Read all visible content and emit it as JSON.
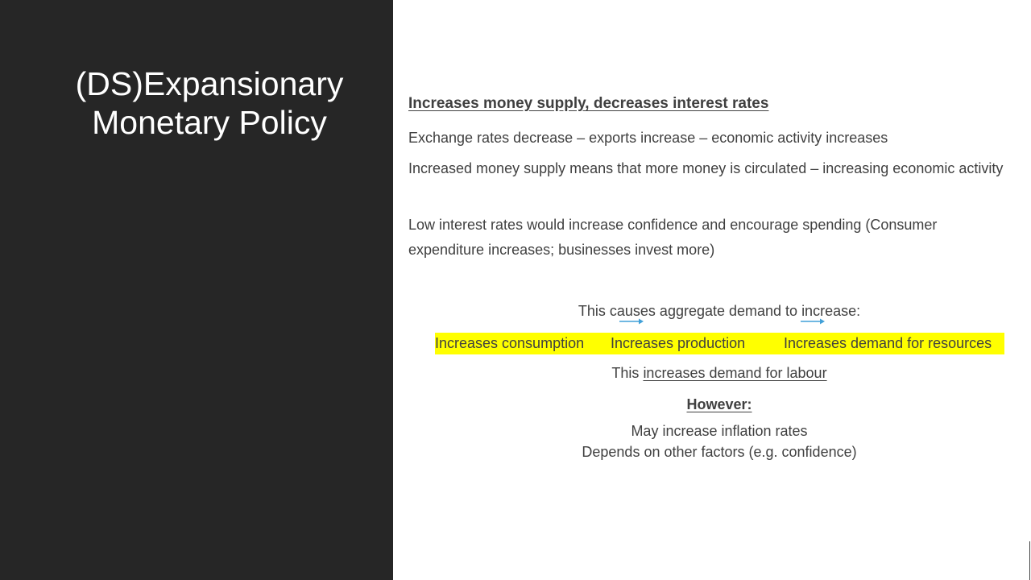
{
  "left": {
    "title_line1": "(DS)Expansionary",
    "title_line2": "Monetary Policy"
  },
  "content": {
    "heading": "Increases money supply, decreases interest rates",
    "paragraphs": [
      "Exchange rates decrease – exports increase – economic activity increases",
      "Increased money supply means that more money is circulated – increasing economic activity",
      "Low interest rates would increase confidence and encourage spending (Consumer expenditure increases; businesses invest more)"
    ],
    "causes_line": "This causes aggregate demand to increase:",
    "chain": [
      "Increases consumption",
      "Increases production",
      "Increases demand for resources"
    ],
    "labour_prefix": "This ",
    "labour_underlined": "increases demand for labour",
    "however": "However:",
    "caveats": [
      "May increase inflation rates",
      "Depends on other factors (e.g. confidence)"
    ]
  },
  "colors": {
    "dark_panel": "#262626",
    "highlight": "#ffff00",
    "arrow": "#41a0d8",
    "body_text": "#404040"
  },
  "icons": {
    "chain_arrow": "right-arrow-icon"
  }
}
